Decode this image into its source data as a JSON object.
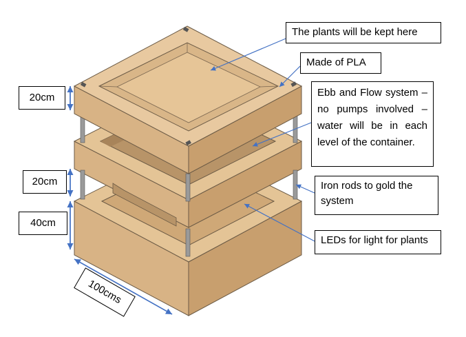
{
  "annotations": {
    "plants": "The plants will be kept here",
    "material": "Made of PLA",
    "ebb_flow": "Ebb and Flow system – no pumps involved – water will be in each level of the container.",
    "rods": "Iron rods to gold the system",
    "leds": "LEDs for light for plants"
  },
  "dimensions": {
    "top_tier": "20cm",
    "middle_tier": "20cm",
    "base": "40cm",
    "width": "100cms"
  },
  "colors": {
    "wood_light": "#e8c9a0",
    "wood_mid": "#d8b385",
    "wood_dark": "#c89f6e",
    "leader": "#4472c4",
    "rod": "#9a9a9a"
  }
}
